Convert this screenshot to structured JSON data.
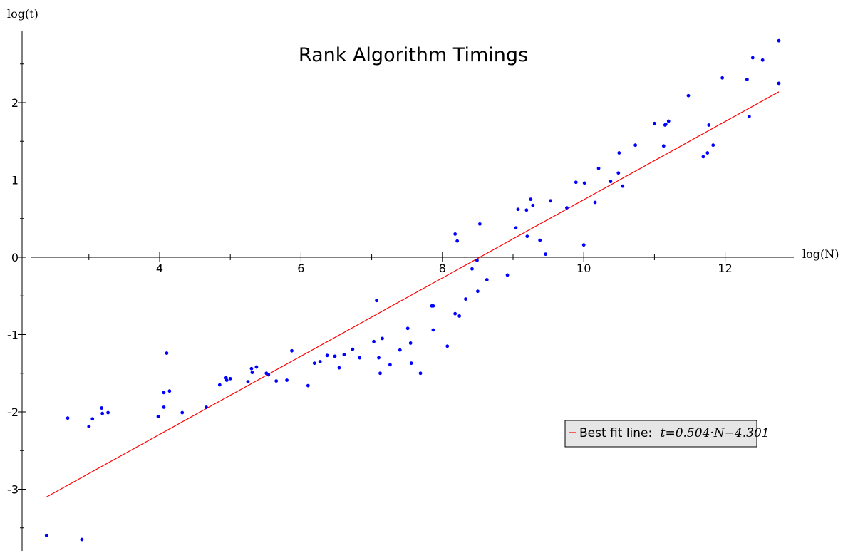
{
  "chart_data": {
    "type": "scatter",
    "title": "Rank Algorithm Timings",
    "xlabel": "log(N)",
    "ylabel": "log(t)",
    "xlim": [
      2.2,
      13.0
    ],
    "ylim": [
      -3.8,
      2.9
    ],
    "x_ticks": [
      4,
      6,
      8,
      10,
      12
    ],
    "y_ticks": [
      -3,
      -2,
      -1,
      0,
      1,
      2
    ],
    "x_tick_labels": [
      "4",
      "6",
      "8",
      "10",
      "12"
    ],
    "y_tick_labels": [
      "-3",
      "-2",
      "-1",
      "0",
      "1",
      "2"
    ],
    "grid": false,
    "legend_position": "lower-right",
    "colors": {
      "points": "#0000ff",
      "fit_line": "#ff0000"
    },
    "series": [
      {
        "type": "scatter",
        "points": [
          [
            2.4,
            -3.6
          ],
          [
            2.9,
            -3.65
          ],
          [
            2.7,
            -2.08
          ],
          [
            3.0,
            -2.19
          ],
          [
            3.05,
            -2.09
          ],
          [
            3.18,
            -1.95
          ],
          [
            3.19,
            -2.02
          ],
          [
            3.27,
            -2.01
          ],
          [
            3.98,
            -2.06
          ],
          [
            4.06,
            -1.94
          ],
          [
            4.06,
            -1.75
          ],
          [
            4.1,
            -1.24
          ],
          [
            4.14,
            -1.73
          ],
          [
            4.32,
            -2.01
          ],
          [
            4.66,
            -1.94
          ],
          [
            4.85,
            -1.65
          ],
          [
            4.94,
            -1.56
          ],
          [
            4.95,
            -1.59
          ],
          [
            5.0,
            -1.57
          ],
          [
            5.25,
            -1.61
          ],
          [
            5.3,
            -1.44
          ],
          [
            5.31,
            -1.49
          ],
          [
            5.37,
            -1.42
          ],
          [
            5.51,
            -1.5
          ],
          [
            5.54,
            -1.52
          ],
          [
            5.65,
            -1.6
          ],
          [
            5.8,
            -1.59
          ],
          [
            5.87,
            -1.21
          ],
          [
            6.1,
            -1.66
          ],
          [
            6.19,
            -1.37
          ],
          [
            6.27,
            -1.35
          ],
          [
            6.37,
            -1.27
          ],
          [
            6.48,
            -1.28
          ],
          [
            6.54,
            -1.43
          ],
          [
            6.61,
            -1.26
          ],
          [
            6.73,
            -1.19
          ],
          [
            6.83,
            -1.3
          ],
          [
            7.03,
            -1.09
          ],
          [
            7.07,
            -0.56
          ],
          [
            7.1,
            -1.3
          ],
          [
            7.12,
            -1.5
          ],
          [
            7.15,
            -1.05
          ],
          [
            7.26,
            -1.39
          ],
          [
            7.4,
            -1.2
          ],
          [
            7.51,
            -0.92
          ],
          [
            7.55,
            -1.11
          ],
          [
            7.56,
            -1.37
          ],
          [
            7.69,
            -1.5
          ],
          [
            7.85,
            -0.63
          ],
          [
            7.87,
            -0.63
          ],
          [
            7.87,
            -0.94
          ],
          [
            8.07,
            -1.15
          ],
          [
            8.18,
            0.3
          ],
          [
            8.18,
            -0.73
          ],
          [
            8.21,
            0.21
          ],
          [
            8.24,
            -0.76
          ],
          [
            8.33,
            -0.54
          ],
          [
            8.42,
            -0.15
          ],
          [
            8.49,
            -0.04
          ],
          [
            8.5,
            -0.44
          ],
          [
            8.53,
            0.43
          ],
          [
            8.63,
            -0.29
          ],
          [
            8.92,
            -0.23
          ],
          [
            9.04,
            0.38
          ],
          [
            9.07,
            0.62
          ],
          [
            9.19,
            0.61
          ],
          [
            9.2,
            0.27
          ],
          [
            9.25,
            0.75
          ],
          [
            9.28,
            0.67
          ],
          [
            9.38,
            0.22
          ],
          [
            9.46,
            0.04
          ],
          [
            9.53,
            0.73
          ],
          [
            9.76,
            0.64
          ],
          [
            9.89,
            0.97
          ],
          [
            10.01,
            0.96
          ],
          [
            10.0,
            0.16
          ],
          [
            10.16,
            0.71
          ],
          [
            10.21,
            1.15
          ],
          [
            10.38,
            0.98
          ],
          [
            10.49,
            1.09
          ],
          [
            10.5,
            1.35
          ],
          [
            10.55,
            0.92
          ],
          [
            10.73,
            1.45
          ],
          [
            11.0,
            1.73
          ],
          [
            11.13,
            1.44
          ],
          [
            11.15,
            1.71
          ],
          [
            11.16,
            1.72
          ],
          [
            11.2,
            1.76
          ],
          [
            11.48,
            2.09
          ],
          [
            11.69,
            1.3
          ],
          [
            11.75,
            1.35
          ],
          [
            11.77,
            1.71
          ],
          [
            11.83,
            1.45
          ],
          [
            11.96,
            2.32
          ],
          [
            12.31,
            2.3
          ],
          [
            12.34,
            1.82
          ],
          [
            12.39,
            2.58
          ],
          [
            12.53,
            2.55
          ],
          [
            12.76,
            2.8
          ],
          [
            12.76,
            2.25
          ]
        ]
      },
      {
        "type": "line",
        "name": "Best fit line:",
        "points": [
          [
            2.4,
            -3.1
          ],
          [
            12.76,
            2.14
          ]
        ]
      }
    ],
    "legend": {
      "label": "Best fit line:",
      "formula": "t=0.504·N−4.301"
    }
  }
}
